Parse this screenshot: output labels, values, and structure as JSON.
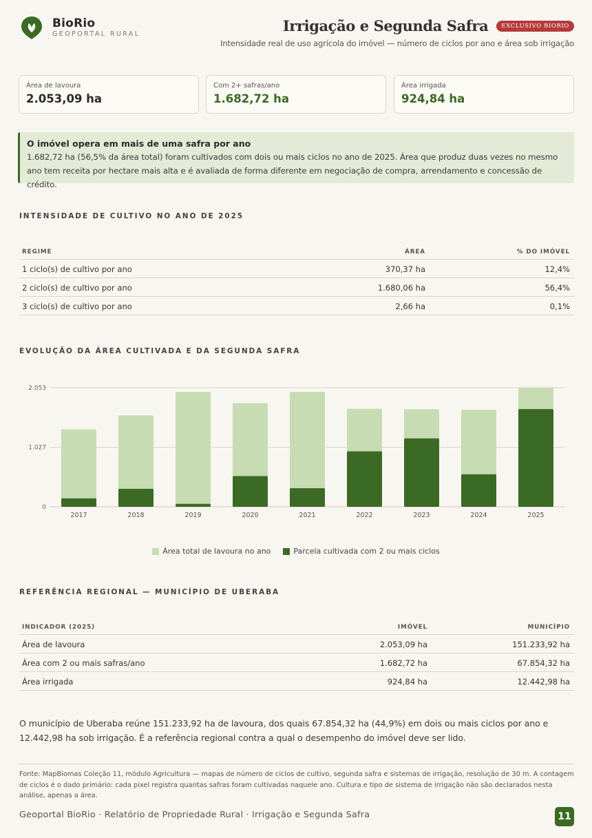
{
  "brand": {
    "name": "BioRio",
    "sub": "GEOPORTAL RURAL"
  },
  "header": {
    "title": "Irrigação e Segunda Safra",
    "badge": "EXCLUSIVO BIORIO",
    "subtitle": "Intensidade real de uso agrícola do imóvel — número de ciclos por ano e área sob irrigação"
  },
  "kpis": [
    {
      "label": "Área de lavoura",
      "value": "2.053,09 ha"
    },
    {
      "label": "Com 2+ safras/ano",
      "value": "1.682,72 ha"
    },
    {
      "label": "Área irrigada",
      "value": "924,84 ha"
    }
  ],
  "callout": {
    "title": "O imóvel opera em mais de uma safra por ano",
    "body": "1.682,72 ha (56,5% da área total) foram cultivados com dois ou mais ciclos no ano de 2025. Área que produz duas vezes no mesmo ano tem receita por hectare mais alta e é avaliada de forma diferente em negociação de compra, arrendamento e concessão de crédito."
  },
  "intensity": {
    "section_title": "INTENSIDADE DE CULTIVO NO ANO DE 2025",
    "headers": [
      "REGIME",
      "ÁREA",
      "% DO IMÓVEL"
    ],
    "rows": [
      [
        "1 ciclo(s) de cultivo por ano",
        "370,37 ha",
        "12,4%"
      ],
      [
        "2 ciclo(s) de cultivo por ano",
        "1.680,06 ha",
        "56,4%"
      ],
      [
        "3 ciclo(s) de cultivo por ano",
        "2,66 ha",
        "0,1%"
      ]
    ]
  },
  "evolution": {
    "section_title": "EVOLUÇÃO DA ÁREA CULTIVADA E DA SEGUNDA SAFRA",
    "legend": [
      "Área total de lavoura no ano",
      "Parcela cultivada com 2 ou mais ciclos"
    ]
  },
  "chart_data": {
    "type": "bar",
    "categories": [
      "2017",
      "2018",
      "2019",
      "2020",
      "2021",
      "2022",
      "2023",
      "2024",
      "2025"
    ],
    "series": [
      {
        "name": "Área total de lavoura no ano",
        "values": [
          1335,
          1575,
          1980,
          1785,
          1980,
          1690,
          1680,
          1670,
          2053
        ]
      },
      {
        "name": "Parcela cultivada com 2 ou mais ciclos",
        "values": [
          145,
          310,
          50,
          530,
          320,
          955,
          1180,
          560,
          1683
        ]
      }
    ],
    "yticks": [
      "0",
      "1.027",
      "2.053"
    ],
    "ylim": [
      0,
      2053
    ],
    "colors": {
      "total": "#c8dcb4",
      "second": "#3b6a25"
    },
    "grid": true,
    "legend_position": "bottom-center"
  },
  "regional": {
    "section_title": "REFERÊNCIA REGIONAL — MUNICÍPIO DE UBERABA",
    "headers": [
      "INDICADOR (2025)",
      "IMÓVEL",
      "MUNICÍPIO"
    ],
    "rows": [
      [
        "Área de lavoura",
        "2.053,09 ha",
        "151.233,92 ha"
      ],
      [
        "Área com 2 ou mais safras/ano",
        "1.682,72 ha",
        "67.854,32 ha"
      ],
      [
        "Área irrigada",
        "924,84 ha",
        "12.442,98 ha"
      ]
    ]
  },
  "paragraph": "O município de Uberaba reúne 151.233,92 ha de lavoura, dos quais 67.854,32 ha (44,9%) em dois ou mais ciclos por ano e 12.442,98 ha sob irrigação. É a referência regional contra a qual o desempenho do imóvel deve ser lido.",
  "source": "Fonte: MapBiomas Coleção 11, módulo Agricultura — mapas de número de ciclos de cultivo, segunda safra e sistemas de irrigação, resolução de 30 m. A contagem de ciclos é o dado primário: cada pixel registra quantas safras foram cultivadas naquele ano. Cultura e tipo de sistema de irrigação não são declarados nesta análise, apenas a área.",
  "footer": {
    "text": "Geoportal BioRio · Relatório de Propriedade Rural · Irrigação e Segunda Safra",
    "page": "11"
  },
  "theme": {
    "accent": "#3b6a25",
    "badge": "#b63a3a",
    "background": "#f8f6f0"
  }
}
